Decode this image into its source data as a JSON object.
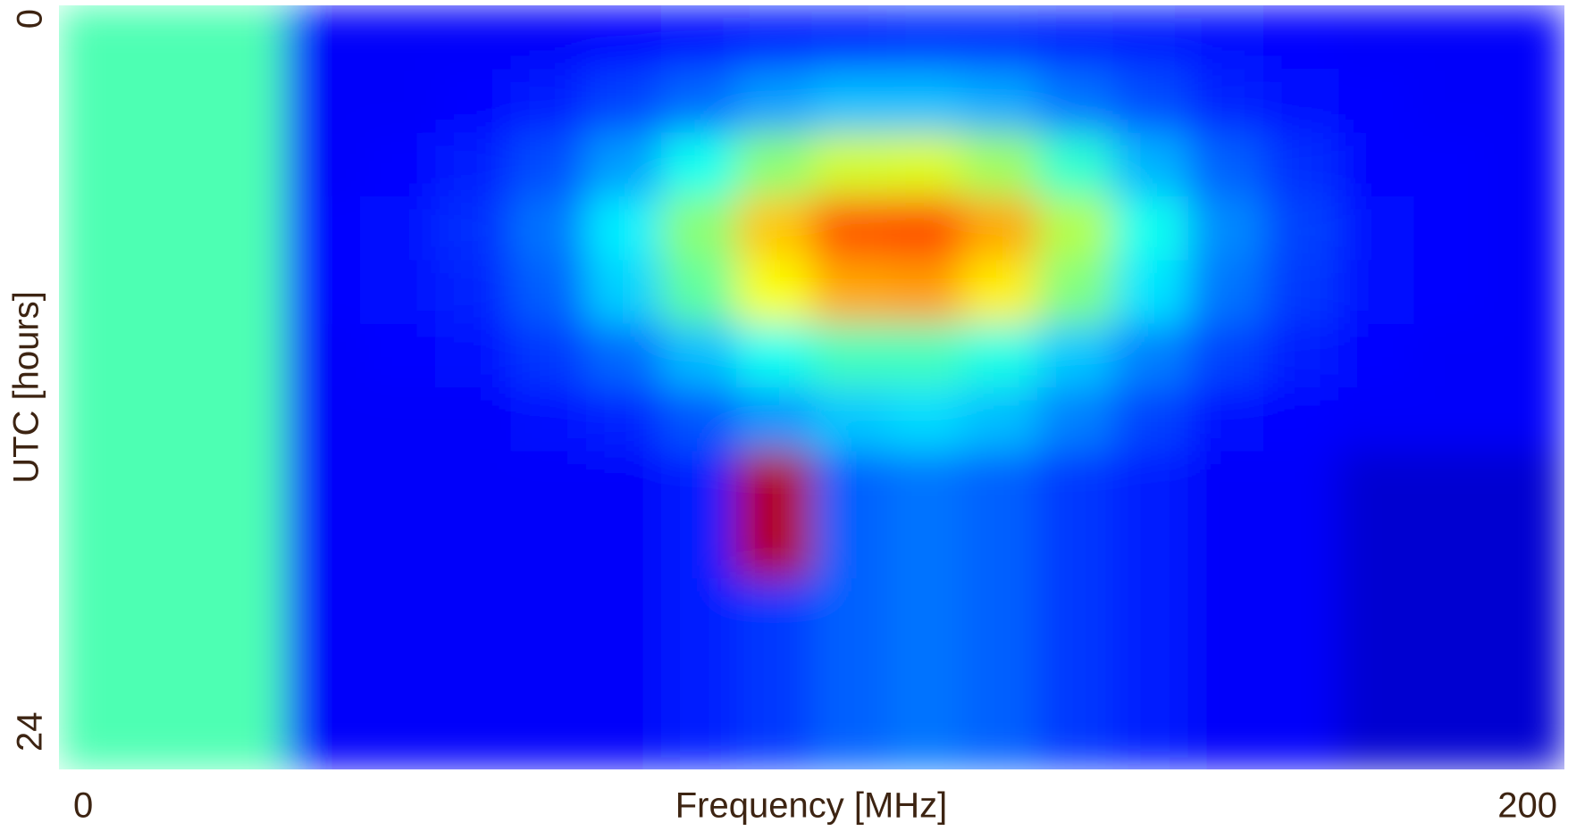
{
  "chart_data": {
    "type": "heatmap",
    "xlabel": "Frequency [MHz]",
    "ylabel": "UTC [hours]",
    "xlim": [
      0,
      200
    ],
    "ylim": [
      0,
      24
    ],
    "xticks": [
      0,
      200
    ],
    "yticks": [
      0,
      24
    ],
    "y_inverted": true,
    "colormap": "jet",
    "x": [
      5,
      15,
      25,
      35,
      45,
      55,
      65,
      75,
      85,
      95,
      105,
      115,
      125,
      135,
      145,
      155,
      165,
      175,
      185,
      195
    ],
    "y": [
      1,
      3,
      5,
      7,
      9,
      11,
      13,
      15,
      17,
      19,
      21,
      23
    ],
    "z": [
      [
        0.45,
        0.45,
        0.45,
        0.12,
        0.12,
        0.12,
        0.12,
        0.13,
        0.14,
        0.15,
        0.16,
        0.17,
        0.17,
        0.16,
        0.15,
        0.14,
        0.13,
        0.12,
        0.12,
        0.12
      ],
      [
        0.45,
        0.45,
        0.45,
        0.12,
        0.12,
        0.13,
        0.15,
        0.19,
        0.23,
        0.28,
        0.31,
        0.31,
        0.29,
        0.24,
        0.2,
        0.16,
        0.14,
        0.13,
        0.12,
        0.12
      ],
      [
        0.45,
        0.45,
        0.45,
        0.12,
        0.13,
        0.15,
        0.2,
        0.28,
        0.39,
        0.51,
        0.58,
        0.59,
        0.53,
        0.42,
        0.3,
        0.22,
        0.17,
        0.13,
        0.13,
        0.12
      ],
      [
        0.45,
        0.45,
        0.45,
        0.13,
        0.14,
        0.17,
        0.24,
        0.36,
        0.51,
        0.68,
        0.79,
        0.8,
        0.71,
        0.55,
        0.39,
        0.26,
        0.19,
        0.14,
        0.13,
        0.12
      ],
      [
        0.45,
        0.45,
        0.45,
        0.13,
        0.14,
        0.16,
        0.22,
        0.33,
        0.47,
        0.62,
        0.71,
        0.72,
        0.64,
        0.5,
        0.35,
        0.24,
        0.18,
        0.14,
        0.13,
        0.12
      ],
      [
        0.45,
        0.45,
        0.45,
        0.12,
        0.13,
        0.14,
        0.18,
        0.23,
        0.31,
        0.39,
        0.44,
        0.44,
        0.4,
        0.32,
        0.25,
        0.19,
        0.15,
        0.13,
        0.12,
        0.12
      ],
      [
        0.45,
        0.45,
        0.45,
        0.12,
        0.12,
        0.12,
        0.14,
        0.16,
        0.21,
        0.27,
        0.32,
        0.34,
        0.31,
        0.25,
        0.19,
        0.14,
        0.13,
        0.12,
        0.12,
        0.12
      ],
      [
        0.45,
        0.45,
        0.45,
        0.12,
        0.12,
        0.12,
        0.12,
        0.12,
        0.15,
        0.95,
        0.22,
        0.24,
        0.22,
        0.18,
        0.15,
        0.12,
        0.12,
        0.08,
        0.08,
        0.08
      ],
      [
        0.45,
        0.45,
        0.45,
        0.12,
        0.12,
        0.12,
        0.12,
        0.12,
        0.15,
        0.95,
        0.22,
        0.24,
        0.22,
        0.18,
        0.15,
        0.12,
        0.12,
        0.08,
        0.08,
        0.08
      ],
      [
        0.45,
        0.45,
        0.45,
        0.12,
        0.12,
        0.12,
        0.12,
        0.12,
        0.15,
        0.18,
        0.22,
        0.24,
        0.22,
        0.18,
        0.15,
        0.12,
        0.12,
        0.08,
        0.08,
        0.08
      ],
      [
        0.45,
        0.45,
        0.45,
        0.12,
        0.12,
        0.12,
        0.12,
        0.12,
        0.15,
        0.18,
        0.22,
        0.24,
        0.22,
        0.18,
        0.15,
        0.12,
        0.12,
        0.08,
        0.08,
        0.08
      ],
      [
        0.45,
        0.45,
        0.45,
        0.12,
        0.12,
        0.12,
        0.12,
        0.12,
        0.15,
        0.18,
        0.22,
        0.24,
        0.22,
        0.18,
        0.15,
        0.12,
        0.12,
        0.08,
        0.08,
        0.08
      ]
    ]
  }
}
